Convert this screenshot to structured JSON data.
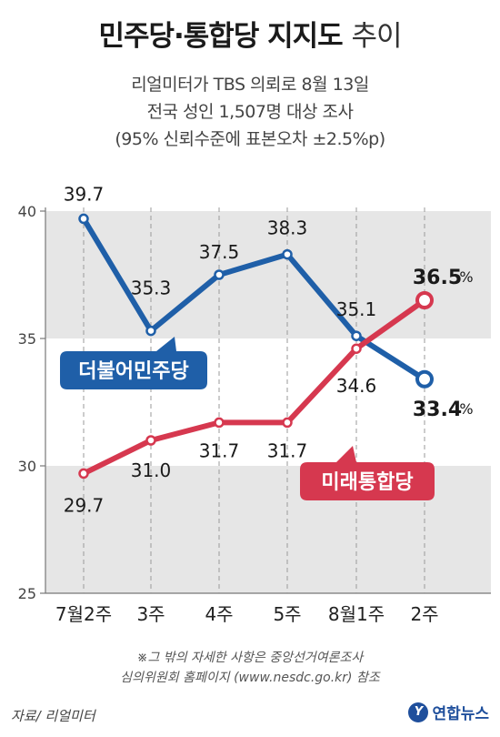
{
  "header": {
    "title_main": "민주당·통합당 지지도",
    "title_light": "추이",
    "line1": "리얼미터가 TBS 의뢰로 8월 13일",
    "line2": "전국 성인 1,507명 대상 조사",
    "line3": "(95% 신뢰수준에 표본오차 ±2.5%p)"
  },
  "chart_data": {
    "type": "line",
    "categories": [
      "7월2주",
      "3주",
      "4주",
      "5주",
      "8월1주",
      "2주"
    ],
    "ylim": [
      25,
      40
    ],
    "yticks": [
      25,
      30,
      35,
      40
    ],
    "grid": "dashed vertical guides per category, shaded bands",
    "unit": "%",
    "series": [
      {
        "name": "더불어민주당",
        "color": "#1f5fa8",
        "values": [
          39.7,
          35.3,
          37.5,
          38.3,
          35.1,
          33.4
        ],
        "labels": [
          "39.7",
          "35.3",
          "37.5",
          "38.3",
          "35.1",
          "33.4"
        ]
      },
      {
        "name": "미래통합당",
        "color": "#d6384f",
        "values": [
          29.7,
          31.0,
          31.7,
          31.7,
          34.6,
          36.5
        ],
        "labels": [
          "29.7",
          "31.0",
          "31.7",
          "31.7",
          "34.6",
          "36.5"
        ]
      }
    ]
  },
  "footer": {
    "note1": "※그 밖의 자세한 사항은 중앙선거여론조사",
    "note2": "심의위원회 홈페이지 (www.nesdc.go.kr) 참조",
    "source": "자료/ 리얼미터",
    "logo_mark": "Y",
    "logo": "연합뉴스"
  }
}
